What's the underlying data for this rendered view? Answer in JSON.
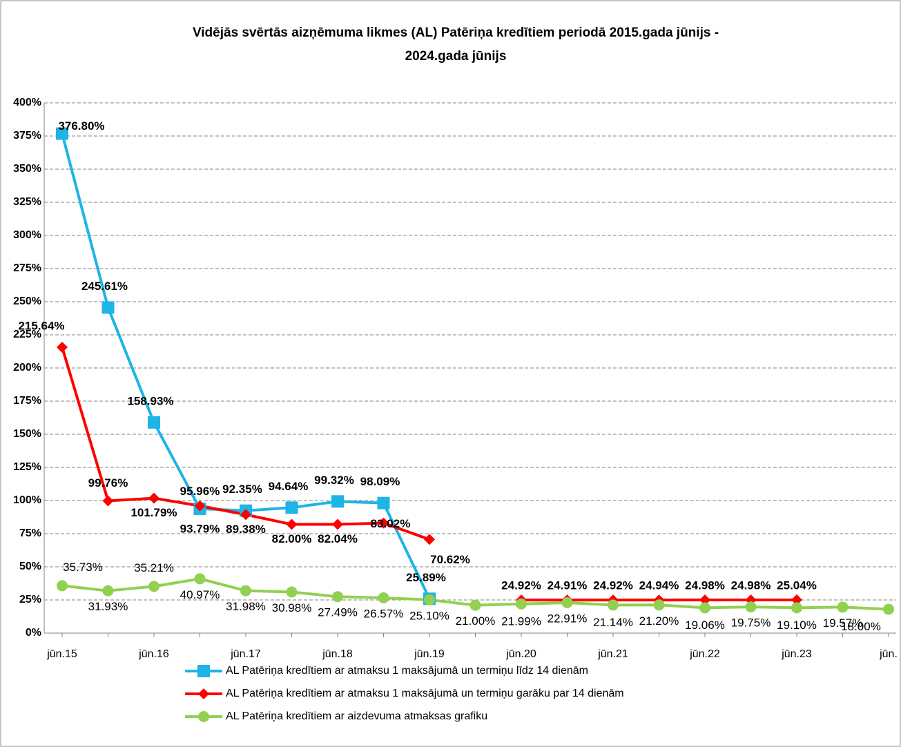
{
  "chart_data": {
    "type": "line",
    "title": "Vidējās svērtās aizņēmuma likmes (AL) Patēriņa kredītiem periodā  2015.gada jūnijs - 2024.gada jūnijs",
    "categories": [
      "jūn.15",
      null,
      "jūn.16",
      null,
      "jūn.17",
      null,
      "jūn.18",
      null,
      "jūn.19",
      null,
      "jūn.20",
      null,
      "jūn.21",
      null,
      "jūn.22",
      null,
      "jūn.23",
      null,
      "jūn."
    ],
    "ylim": [
      0,
      400
    ],
    "yticks": [
      {
        "value": 0,
        "label": "0%"
      },
      {
        "value": 25,
        "label": "25%"
      },
      {
        "value": 50,
        "label": "50%"
      },
      {
        "value": 75,
        "label": "75%"
      },
      {
        "value": 100,
        "label": "100%"
      },
      {
        "value": 125,
        "label": "125%"
      },
      {
        "value": 150,
        "label": "150%"
      },
      {
        "value": 175,
        "label": "175%"
      },
      {
        "value": 200,
        "label": "200%"
      },
      {
        "value": 225,
        "label": "225%"
      },
      {
        "value": 250,
        "label": "250%"
      },
      {
        "value": 275,
        "label": "275%"
      },
      {
        "value": 300,
        "label": "300%"
      },
      {
        "value": 325,
        "label": "325%"
      },
      {
        "value": 350,
        "label": "350%"
      },
      {
        "value": 375,
        "label": "375%"
      },
      {
        "value": 400,
        "label": "400%"
      }
    ],
    "grid": true,
    "series": [
      {
        "name": "AL Patēriņa kredītiem ar atmaksu 1 maksājumā un termiņu līdz 14 dienām",
        "color": "#1eb4e6",
        "marker": "square",
        "values": [
          376.8,
          245.61,
          158.93,
          93.79,
          92.35,
          94.64,
          99.32,
          98.09,
          25.89,
          null,
          null,
          null,
          null,
          null,
          null,
          null,
          null,
          null,
          null
        ],
        "value_labels": [
          "376.80%",
          "245.61%",
          "158.93%",
          "93.79%",
          "92.35%",
          "94.64%",
          "99.32%",
          "98.09%",
          "25.89%",
          null,
          null,
          null,
          null,
          null,
          null,
          null,
          null,
          null,
          null
        ]
      },
      {
        "name": "AL Patēriņa kredītiem ar atmaksu 1 maksājumā un termiņu garāku par 14 dienām",
        "color": "#ff0000",
        "marker": "diamond",
        "values": [
          215.64,
          99.76,
          101.79,
          95.96,
          89.38,
          82.0,
          82.04,
          83.02,
          70.62,
          null,
          24.92,
          24.91,
          24.92,
          24.94,
          24.98,
          24.98,
          25.04,
          null,
          null
        ],
        "value_labels": [
          "215.64%",
          "99.76%",
          "101.79%",
          "95.96%",
          "89.38%",
          "82.00%",
          "82.04%",
          "83.02%",
          "70.62%",
          null,
          "24.92%",
          "24.91%",
          "24.92%",
          "24.94%",
          "24.98%",
          "24.98%",
          "25.04%",
          null,
          null
        ]
      },
      {
        "name": "AL Patēriņa kredītiem ar aizdevuma atmaksas grafiku",
        "color": "#92d050",
        "marker": "circle",
        "values": [
          35.73,
          31.93,
          35.21,
          40.97,
          31.98,
          30.98,
          27.49,
          26.57,
          25.1,
          21.0,
          21.99,
          22.91,
          21.14,
          21.2,
          19.06,
          19.75,
          19.1,
          19.57,
          18.0
        ],
        "value_labels": [
          "35.73%",
          "31.93%",
          "35.21%",
          "40.97%",
          "31.98%",
          "30.98%",
          "27.49%",
          "26.57%",
          "25.10%",
          "21.00%",
          "21.99%",
          "22.91%",
          "21.14%",
          "21.20%",
          "19.06%",
          "19.75%",
          "19.10%",
          "19.57%",
          "18.00%"
        ]
      }
    ]
  }
}
